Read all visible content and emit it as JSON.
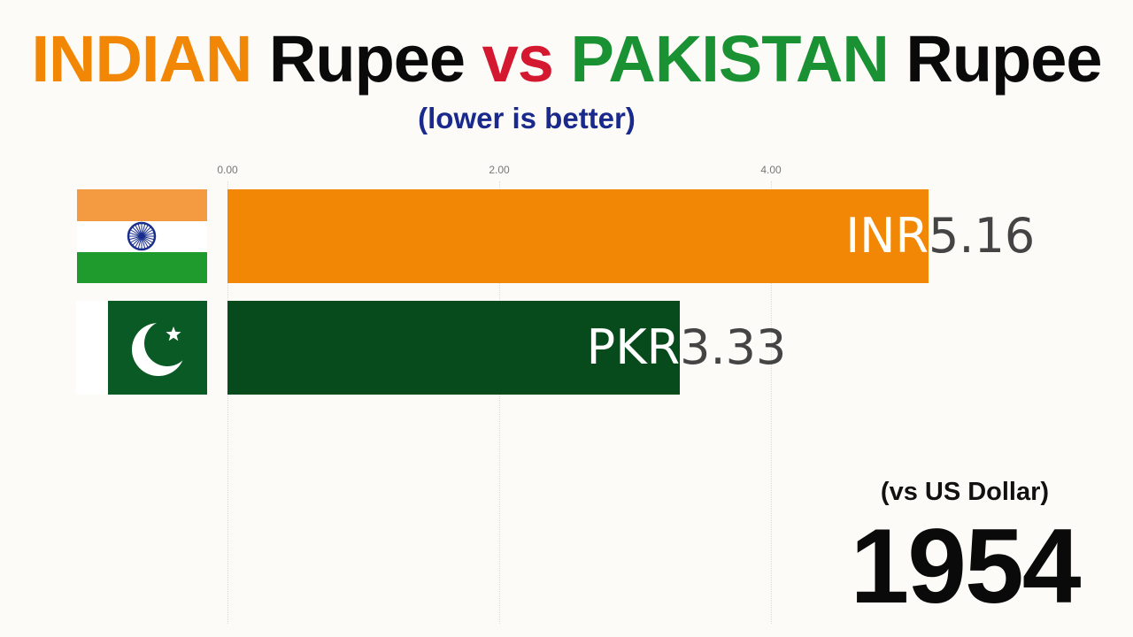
{
  "header": {
    "title_parts": [
      {
        "text": "INDIAN",
        "color": "#f28705"
      },
      {
        "text": " Rupee ",
        "color": "#0a0a0a"
      },
      {
        "text": "vs",
        "color": "#d3182f"
      },
      {
        "text": " PAKISTAN",
        "color": "#1a9133"
      },
      {
        "text": " Rupee",
        "color": "#0a0a0a"
      }
    ],
    "subtitle": "(lower is better)",
    "subtitle_color": "#1a2a8c"
  },
  "chart_data": {
    "type": "bar",
    "orientation": "horizontal",
    "categories": [
      "INR",
      "PKR"
    ],
    "values": [
      5.16,
      3.33
    ],
    "value_labels": [
      "5.16",
      "3.33"
    ],
    "colors": [
      "#f28705",
      "#074b1d"
    ],
    "flags": [
      "india-flag-icon",
      "pakistan-flag-icon"
    ],
    "xticks": [
      0,
      2,
      4
    ],
    "xtick_labels": [
      "0.00",
      "2.00",
      "4.00"
    ],
    "xlim": [
      0,
      6.95
    ],
    "grid": true,
    "title": "",
    "xlabel": "",
    "ylabel": ""
  },
  "footer": {
    "note": "(vs US Dollar)",
    "year": "1954"
  }
}
